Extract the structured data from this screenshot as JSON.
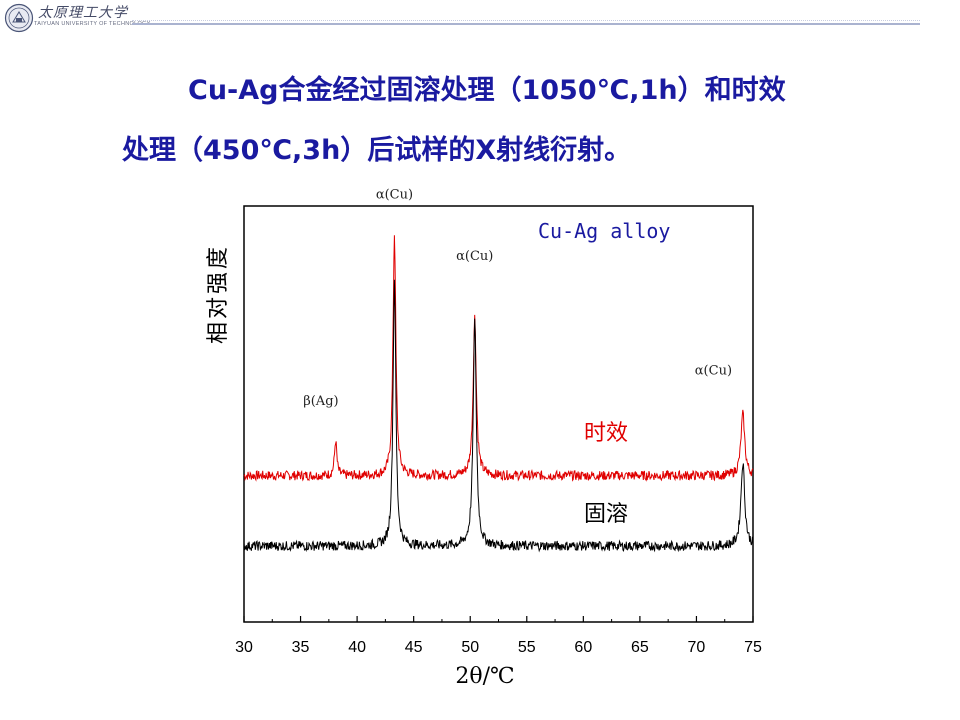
{
  "header": {
    "university_cn": "太原理工大学",
    "university_en": "TAIYUAN UNIVERSITY OF TECHNOLOGY"
  },
  "heading": {
    "line1": "Cu-Ag合金经过固溶处理（1050℃,1h）和时效",
    "line2": "处理（450℃,3h）后试样的X射线衍射。"
  },
  "chart_data": {
    "type": "line",
    "xlabel": "2θ/℃",
    "ylabel": "相对强度",
    "xlim": [
      30,
      75
    ],
    "x_ticks": [
      "30",
      "35",
      "40",
      "45",
      "50",
      "55",
      "60",
      "65",
      "70",
      "75"
    ],
    "legend_title": "Cu-Ag alloy",
    "grid": false,
    "series": [
      {
        "name": "时效",
        "color": "#e00000",
        "baseline": 0.16,
        "peaks": [
          {
            "x": 38.1,
            "height": 0.08,
            "width": 0.18
          },
          {
            "x": 43.3,
            "height": 0.55,
            "width": 0.22
          },
          {
            "x": 50.4,
            "height": 0.36,
            "width": 0.25
          },
          {
            "x": 74.1,
            "height": 0.14,
            "width": 0.3
          }
        ]
      },
      {
        "name": "固溶",
        "color": "#000000",
        "baseline": 0.0,
        "peaks": [
          {
            "x": 43.3,
            "height": 0.61,
            "width": 0.22
          },
          {
            "x": 50.4,
            "height": 0.51,
            "width": 0.25
          },
          {
            "x": 74.1,
            "height": 0.19,
            "width": 0.3
          }
        ]
      }
    ],
    "annotations": [
      {
        "text": "α(Cu)",
        "x": 43.3,
        "y": 0.79
      },
      {
        "text": "α(Cu)",
        "x": 50.4,
        "y": 0.65
      },
      {
        "text": "α(Cu)",
        "x": 71.5,
        "y": 0.39
      },
      {
        "text": "β(Ag)",
        "x": 36.8,
        "y": 0.32
      }
    ]
  }
}
